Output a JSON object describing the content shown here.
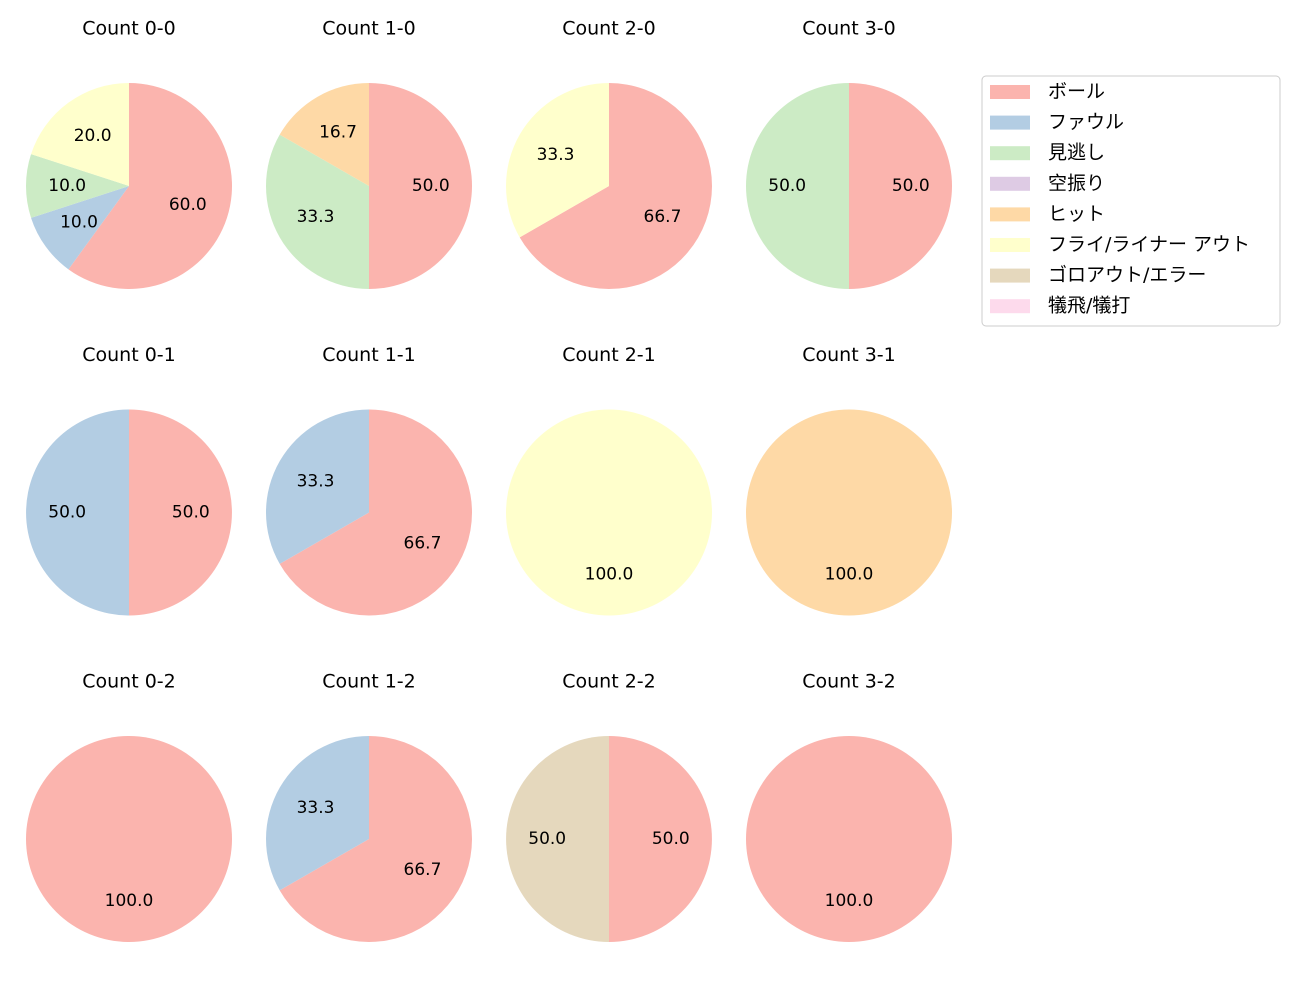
{
  "legend": {
    "labels": [
      "ボール",
      "ファウル",
      "見逃し",
      "空振り",
      "ヒット",
      "フライ/ライナー アウト",
      "ゴロアウト/エラー",
      "犠飛/犠打"
    ],
    "colors": [
      "#fbb4ae",
      "#b3cde3",
      "#ccebc5",
      "#decbe4",
      "#fed9a6",
      "#ffffcc",
      "#e5d8bd",
      "#fddaec"
    ]
  },
  "chart_data": [
    {
      "type": "pie",
      "title": "Count 0-0",
      "categories": [
        "ボール",
        "ファウル",
        "見逃し",
        "フライ/ライナー アウト"
      ],
      "values": [
        60,
        10,
        10,
        20
      ],
      "value_labels": [
        "60.0",
        "10.0",
        "10.0",
        "20.0"
      ]
    },
    {
      "type": "pie",
      "title": "Count 1-0",
      "categories": [
        "ボール",
        "見逃し",
        "ヒット"
      ],
      "values": [
        50,
        33.3,
        16.7
      ],
      "value_labels": [
        "50.0",
        "33.3",
        "16.7"
      ]
    },
    {
      "type": "pie",
      "title": "Count 2-0",
      "categories": [
        "ボール",
        "フライ/ライナー アウト"
      ],
      "values": [
        66.7,
        33.3
      ],
      "value_labels": [
        "66.7",
        "33.3"
      ]
    },
    {
      "type": "pie",
      "title": "Count 3-0",
      "categories": [
        "ボール",
        "見逃し"
      ],
      "values": [
        50,
        50
      ],
      "value_labels": [
        "50.0",
        "50.0"
      ]
    },
    {
      "type": "pie",
      "title": "Count 0-1",
      "categories": [
        "ボール",
        "ファウル"
      ],
      "values": [
        50,
        50
      ],
      "value_labels": [
        "50.0",
        "50.0"
      ]
    },
    {
      "type": "pie",
      "title": "Count 1-1",
      "categories": [
        "ボール",
        "ファウル"
      ],
      "values": [
        66.7,
        33.3
      ],
      "value_labels": [
        "66.7",
        "33.3"
      ]
    },
    {
      "type": "pie",
      "title": "Count 2-1",
      "categories": [
        "フライ/ライナー アウト"
      ],
      "values": [
        100
      ],
      "value_labels": [
        "100.0"
      ]
    },
    {
      "type": "pie",
      "title": "Count 3-1",
      "categories": [
        "ヒット"
      ],
      "values": [
        100
      ],
      "value_labels": [
        "100.0"
      ]
    },
    {
      "type": "pie",
      "title": "Count 0-2",
      "categories": [
        "ボール"
      ],
      "values": [
        100
      ],
      "value_labels": [
        "100.0"
      ]
    },
    {
      "type": "pie",
      "title": "Count 1-2",
      "categories": [
        "ボール",
        "ファウル"
      ],
      "values": [
        66.7,
        33.3
      ],
      "value_labels": [
        "66.7",
        "33.3"
      ]
    },
    {
      "type": "pie",
      "title": "Count 2-2",
      "categories": [
        "ボール",
        "ゴロアウト/エラー"
      ],
      "values": [
        50,
        50
      ],
      "value_labels": [
        "50.0",
        "50.0"
      ]
    },
    {
      "type": "pie",
      "title": "Count 3-2",
      "categories": [
        "ボール"
      ],
      "values": [
        100
      ],
      "value_labels": [
        "100.0"
      ]
    }
  ]
}
